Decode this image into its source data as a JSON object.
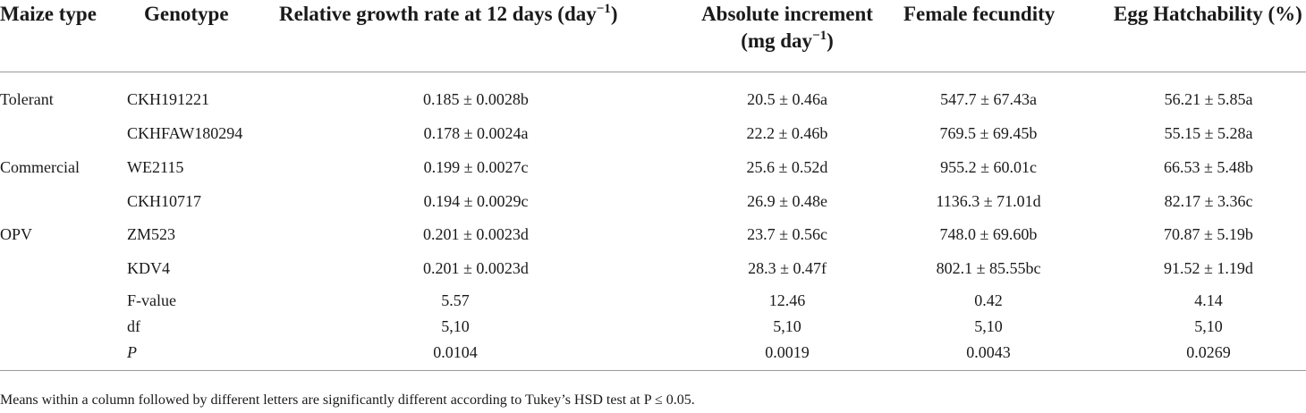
{
  "headers": {
    "maize_type": "Maize type",
    "genotype": "Genotype",
    "rgr_main": "Relative growth rate at 12 days (day",
    "rgr_sup": "−1",
    "rgr_close": ")",
    "abs_line1": "Absolute increment",
    "abs_line2_main": "(mg day",
    "abs_line2_sup": "−1",
    "abs_line2_close": ")",
    "fecundity": "Female fecundity",
    "hatch": "Egg Hatchability (%)"
  },
  "rows": [
    {
      "maize_type": "Tolerant",
      "genotype": "CKH191221",
      "rgr": "0.185 ± 0.0028b",
      "abs": "20.5 ± 0.46a",
      "fec": "547.7 ± 67.43a",
      "hatch": "56.21 ± 5.85a"
    },
    {
      "maize_type": "",
      "genotype": "CKHFAW180294",
      "rgr": "0.178 ± 0.0024a",
      "abs": "22.2 ± 0.46b",
      "fec": "769.5 ± 69.45b",
      "hatch": "55.15 ± 5.28a"
    },
    {
      "maize_type": "Commercial",
      "genotype": "WE2115",
      "rgr": "0.199 ± 0.0027c",
      "abs": "25.6 ± 0.52d",
      "fec": "955.2 ± 60.01c",
      "hatch": "66.53 ± 5.48b"
    },
    {
      "maize_type": "",
      "genotype": "CKH10717",
      "rgr": "0.194 ± 0.0029c",
      "abs": "26.9 ± 0.48e",
      "fec": "1136.3 ± 71.01d",
      "hatch": "82.17 ± 3.36c"
    },
    {
      "maize_type": "OPV",
      "genotype": "ZM523",
      "rgr": "0.201 ± 0.0023d",
      "abs": "23.7 ± 0.56c",
      "fec": "748.0 ± 69.60b",
      "hatch": "70.87 ± 5.19b"
    },
    {
      "maize_type": "",
      "genotype": "KDV4",
      "rgr": "0.201 ± 0.0023d",
      "abs": "28.3 ± 0.47f",
      "fec": "802.1 ± 85.55bc",
      "hatch": "91.52 ± 1.19d"
    }
  ],
  "stats": [
    {
      "label": "F-value",
      "rgr": "5.57",
      "abs": "12.46",
      "fec": "0.42",
      "hatch": "4.14"
    },
    {
      "label": "df",
      "rgr": "5,10",
      "abs": "5,10",
      "fec": "5,10",
      "hatch": "5,10"
    },
    {
      "label": "P",
      "rgr": "0.0104",
      "abs": "0.0019",
      "fec": "0.0043",
      "hatch": "0.0269"
    }
  ],
  "footnote": "Means within a column followed by different letters are significantly different according to Tukey’s HSD test at P ≤ 0.05."
}
